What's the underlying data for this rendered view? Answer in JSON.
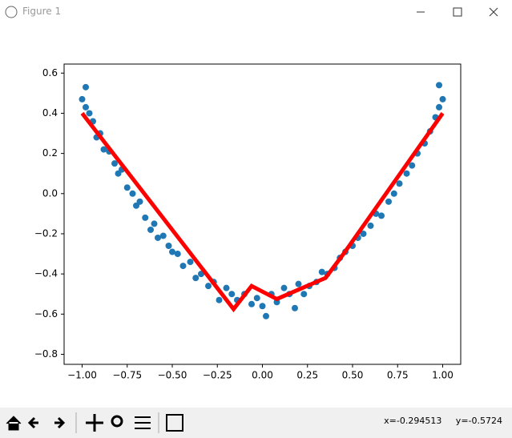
{
  "window": {
    "title": "Figure 1"
  },
  "toolbar": {
    "coordinates": "x=-0.294513     y=-0.5724"
  },
  "chart_data": {
    "type": "scatter",
    "xlim": [
      -1.1,
      1.1
    ],
    "ylim": [
      -0.85,
      0.645
    ],
    "xticks": [
      {
        "value": -1,
        "label": "−1.00"
      },
      {
        "value": -0.75,
        "label": "−0.75"
      },
      {
        "value": -0.5,
        "label": "−0.50"
      },
      {
        "value": -0.25,
        "label": "−0.25"
      },
      {
        "value": 0,
        "label": "0.00"
      },
      {
        "value": 0.25,
        "label": "0.25"
      },
      {
        "value": 0.5,
        "label": "0.50"
      },
      {
        "value": 0.75,
        "label": "0.75"
      },
      {
        "value": 1,
        "label": "1.00"
      }
    ],
    "yticks": [
      {
        "value": -0.8,
        "label": "−0.8"
      },
      {
        "value": -0.6,
        "label": "−0.6"
      },
      {
        "value": -0.4,
        "label": "−0.4"
      },
      {
        "value": -0.2,
        "label": "−0.2"
      },
      {
        "value": 0,
        "label": "0.0"
      },
      0.2,
      0.4,
      0.6
    ],
    "series": [
      {
        "type": "scatter",
        "color": "#1f77b4",
        "x": [
          -1.0,
          -0.98,
          -0.96,
          -0.94,
          -0.92,
          -0.9,
          -0.88,
          -0.85,
          -0.82,
          -0.8,
          -0.78,
          -0.75,
          -0.72,
          -0.7,
          -0.68,
          -0.65,
          -0.62,
          -0.6,
          -0.58,
          -0.55,
          -0.52,
          -0.5,
          -0.47,
          -0.44,
          -0.4,
          -0.37,
          -0.34,
          -0.3,
          -0.27,
          -0.24,
          -0.2,
          -0.17,
          -0.14,
          -0.1,
          -0.06,
          -0.03,
          0.0,
          0.02,
          0.05,
          0.08,
          0.12,
          0.15,
          0.18,
          0.2,
          0.23,
          0.26,
          0.3,
          0.33,
          0.36,
          0.4,
          0.43,
          0.46,
          0.5,
          0.53,
          0.56,
          0.6,
          0.63,
          0.66,
          0.7,
          0.73,
          0.76,
          0.8,
          0.83,
          0.86,
          0.9,
          0.93,
          0.96,
          0.98,
          1.0,
          0.98,
          -0.98
        ],
        "values": [
          0.47,
          0.43,
          0.4,
          0.36,
          0.28,
          0.3,
          0.22,
          0.21,
          0.15,
          0.1,
          0.12,
          0.03,
          0.0,
          -0.06,
          -0.04,
          -0.12,
          -0.18,
          -0.15,
          -0.22,
          -0.21,
          -0.26,
          -0.29,
          -0.3,
          -0.36,
          -0.34,
          -0.42,
          -0.4,
          -0.46,
          -0.44,
          -0.53,
          -0.47,
          -0.5,
          -0.53,
          -0.5,
          -0.55,
          -0.52,
          -0.56,
          -0.61,
          -0.5,
          -0.54,
          -0.47,
          -0.5,
          -0.57,
          -0.45,
          -0.5,
          -0.46,
          -0.44,
          -0.39,
          -0.4,
          -0.37,
          -0.32,
          -0.29,
          -0.26,
          -0.22,
          -0.2,
          -0.16,
          -0.1,
          -0.11,
          -0.04,
          0.0,
          0.05,
          0.1,
          0.14,
          0.2,
          0.25,
          0.31,
          0.38,
          0.43,
          0.47,
          0.54,
          0.53
        ]
      },
      {
        "type": "line",
        "color": "#ff0000",
        "x": [
          -1.0,
          -0.16,
          -0.06,
          0.08,
          0.35,
          0.45,
          1.0
        ],
        "values": [
          0.4,
          -0.575,
          -0.46,
          -0.525,
          -0.42,
          -0.3,
          0.4
        ]
      }
    ]
  }
}
